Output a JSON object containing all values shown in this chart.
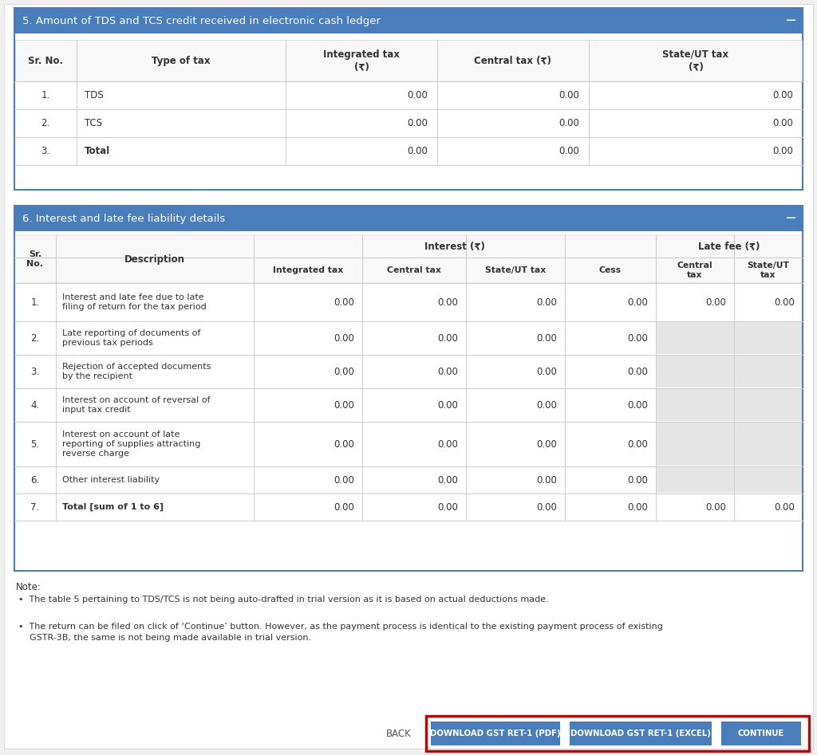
{
  "bg_color": "#f0f0f0",
  "page_bg": "#ffffff",
  "header_color": "#4a7eba",
  "header_text_color": "#ffffff",
  "border_color": "#4a7eba",
  "table_border_color": "#cccccc",
  "text_color": "#333333",
  "section5_title": "5. Amount of TDS and TCS credit received in electronic cash ledger",
  "section6_title": "6. Interest and late fee liability details",
  "section5_headers": [
    "Sr. No.",
    "Type of tax",
    "Integrated tax\n(₹)",
    "Central tax (₹)",
    "State/UT tax\n(₹)"
  ],
  "section5_rows": [
    [
      "1.",
      "TDS",
      "0.00",
      "0.00",
      "0.00"
    ],
    [
      "2.",
      "TCS",
      "0.00",
      "0.00",
      "0.00"
    ],
    [
      "3.",
      "Total",
      "0.00",
      "0.00",
      "0.00"
    ]
  ],
  "section6_rows": [
    [
      "1.",
      "Interest and late fee due to late\nfiling of return for the tax period",
      "0.00",
      "0.00",
      "0.00",
      "0.00",
      "0.00",
      "0.00"
    ],
    [
      "2.",
      "Late reporting of documents of\nprevious tax periods",
      "0.00",
      "0.00",
      "0.00",
      "0.00",
      "",
      ""
    ],
    [
      "3.",
      "Rejection of accepted documents\nby the recipient",
      "0.00",
      "0.00",
      "0.00",
      "0.00",
      "",
      ""
    ],
    [
      "4.",
      "Interest on account of reversal of\ninput tax credit",
      "0.00",
      "0.00",
      "0.00",
      "0.00",
      "",
      ""
    ],
    [
      "5.",
      "Interest on account of late\nreporting of supplies attracting\nreverse charge",
      "0.00",
      "0.00",
      "0.00",
      "0.00",
      "",
      ""
    ],
    [
      "6.",
      "Other interest liability",
      "0.00",
      "0.00",
      "0.00",
      "0.00",
      "",
      ""
    ],
    [
      "7.",
      "Total [sum of 1 to 6]",
      "0.00",
      "0.00",
      "0.00",
      "0.00",
      "0.00",
      "0.00"
    ]
  ],
  "note_title": "Note:",
  "note_lines": [
    "•  The table 5 pertaining to TDS/TCS is not being auto-drafted in trial version as it is based on actual deductions made.",
    "•  The return can be filed on click of ‘Continue’ button. However, as the payment process is identical to the existing payment process of existing\n    GSTR-3B, the same is not being made available in trial version."
  ],
  "btn_back": "BACK",
  "btn1": "DOWNLOAD GST RET-1 (PDF)",
  "btn2": "DOWNLOAD GST RET-1 (EXCEL)",
  "btn3": "CONTINUE",
  "btn_color": "#4a7eba",
  "btn_text_color": "#ffffff",
  "btn_border_red": "#cc0000"
}
